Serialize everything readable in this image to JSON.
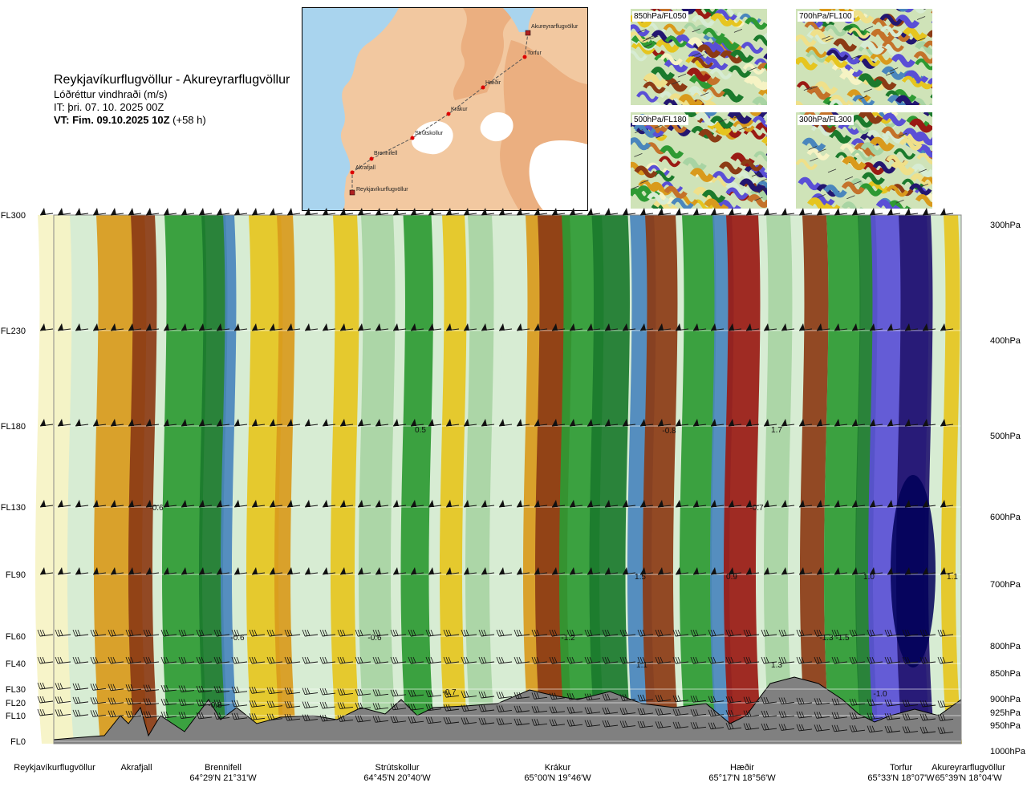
{
  "header": {
    "title": "Reykjavíkurflugvöllur - Akureyrarflugvöllur",
    "subtitle": "Lóðréttur vindhraði (m/s)",
    "issue_time": "IT: þri. 07. 10. 2025 00Z",
    "valid_time": "VT: Fim. 09.10.2025 10Z",
    "valid_offset": "(+58 h)"
  },
  "map": {
    "stations": [
      {
        "name": "Reykjavíkurflugvöllur",
        "type": "airport"
      },
      {
        "name": "Akrafjall",
        "type": "point"
      },
      {
        "name": "Brennifell",
        "type": "point"
      },
      {
        "name": "Strútskollur",
        "type": "point"
      },
      {
        "name": "Krákur",
        "type": "point"
      },
      {
        "name": "Hæðir",
        "type": "point"
      },
      {
        "name": "Torfur",
        "type": "point"
      },
      {
        "name": "Akureyrarflugvöllur",
        "type": "airport"
      }
    ],
    "colors": {
      "ocean": "#a9d4ee",
      "land_low": "#f2c8a0",
      "land_high": "#e9a978",
      "glacier": "#ffffff",
      "route": "#555555",
      "point": "#dd0000"
    }
  },
  "mini_maps": [
    {
      "label": "850hPa/FL050"
    },
    {
      "label": "700hPa/FL100"
    },
    {
      "label": "500hPa/FL180"
    },
    {
      "label": "300hPa/FL300"
    }
  ],
  "chart_data": {
    "type": "heatmap",
    "title": "Reykjavíkurflugvöllur - Akureyrarflugvöllur",
    "variable": "Lóðréttur vindhraði (m/s)",
    "y_levels_left": [
      "FL300",
      "FL230",
      "FL180",
      "FL130",
      "FL90",
      "FL60",
      "FL40",
      "FL30",
      "FL20",
      "FL10",
      "FL0"
    ],
    "y_levels_right": [
      "300hPa",
      "400hPa",
      "500hPa",
      "600hPa",
      "700hPa",
      "800hPa",
      "850hPa",
      "900hPa",
      "925hPa",
      "950hPa",
      "1000hPa"
    ],
    "x_points": [
      {
        "name": "Reykjavíkurflugvöllur",
        "coord": ""
      },
      {
        "name": "Akrafjall",
        "coord": ""
      },
      {
        "name": "Brennifell",
        "coord": "64°29'N 21°31'W"
      },
      {
        "name": "Strútskollur",
        "coord": "64°45'N 20°40'W"
      },
      {
        "name": "Krákur",
        "coord": "65°00'N 19°46'W"
      },
      {
        "name": "Hæðir",
        "coord": "65°17'N 18°56'W"
      },
      {
        "name": "Torfur",
        "coord": "65°33'N 18°07'W"
      },
      {
        "name": "Akureyrarflugvöllur",
        "coord": "65°39'N 18°04'W"
      }
    ],
    "value_labels": [
      "-0.6",
      "-0.8",
      "-0.6",
      "0.5",
      "-0.6",
      "-0.7",
      "-0.7",
      "-0.8",
      "1.5",
      "0.9",
      "1.0",
      "1.1",
      "1.3",
      "1.1",
      "-1.2",
      "1.7",
      "-1.0",
      "-1.3",
      "-1.5"
    ],
    "color_scale": [
      "#231670",
      "#5a4fd6",
      "#4a86bd",
      "#1b7a2c",
      "#2e9a33",
      "#a8d4a3",
      "#d7ecd3",
      "#f6f3c4",
      "#efe08a",
      "#e6c51f",
      "#d99a1c",
      "#c4722a",
      "#8c3b15",
      "#9a1a14"
    ],
    "terrain_color": "#808080",
    "grid": true,
    "wind_barbs": true
  }
}
